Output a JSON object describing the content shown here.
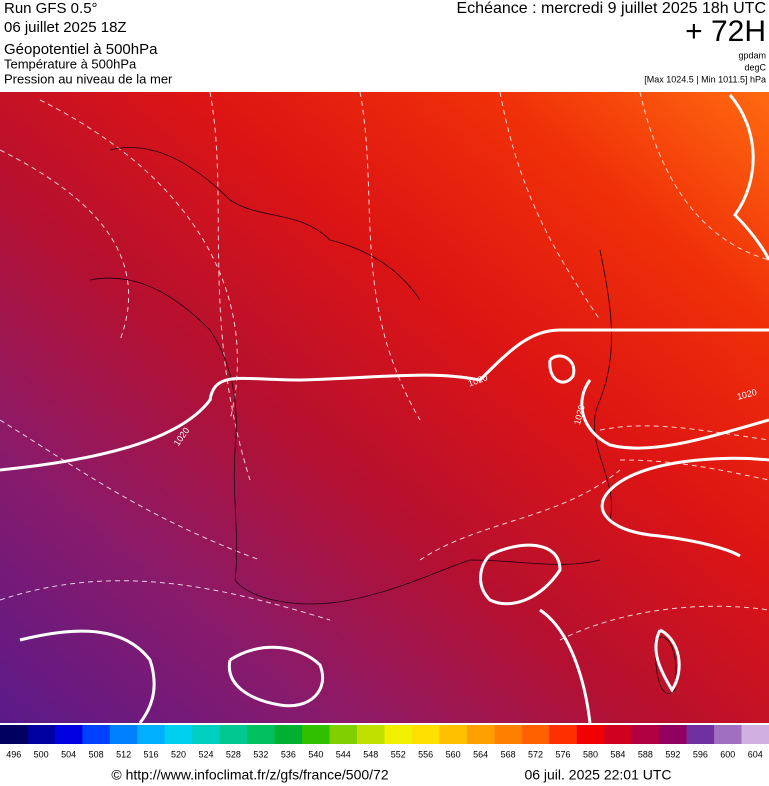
{
  "header": {
    "run": "Run GFS 0.5°",
    "run_date": "06 juillet 2025 18Z",
    "field_1": "Géopotentiel à 500hPa",
    "field_2": "Température à 500hPa",
    "field_3": "Pression au niveau de la mer",
    "valid_time": "Echéance : mercredi 9 juillet 2025 18h UTC",
    "lead": "+ 72H",
    "unit_1": "gpdam",
    "unit_2": "degC",
    "pressure_range": "[Max 1024.5 | Min 1011.5] hPa"
  },
  "isobar_labels": [
    "1020",
    "1020",
    "1020",
    "1020"
  ],
  "colorbar": {
    "labels": [
      496,
      500,
      504,
      508,
      512,
      516,
      520,
      524,
      528,
      532,
      536,
      540,
      544,
      548,
      552,
      556,
      560,
      564,
      568,
      572,
      576,
      580,
      584,
      588,
      592,
      596,
      600,
      604
    ],
    "colors": [
      "#000060",
      "#0000a0",
      "#0000e0",
      "#0040ff",
      "#0080ff",
      "#00b0ff",
      "#00d0f0",
      "#00d0c0",
      "#00c890",
      "#00c060",
      "#00b030",
      "#30c000",
      "#80d000",
      "#c0e000",
      "#f0f000",
      "#ffe000",
      "#ffc000",
      "#ffa000",
      "#ff8000",
      "#ff6000",
      "#ff3000",
      "#f00000",
      "#d00020",
      "#b00040",
      "#900060",
      "#7030a0",
      "#a070c0",
      "#d0b0e0"
    ]
  },
  "footer": {
    "source": "© http://www.infoclimat.fr/z/gfs/france/500/72",
    "timestamp": "06 juil. 2025 22:01 UTC"
  }
}
